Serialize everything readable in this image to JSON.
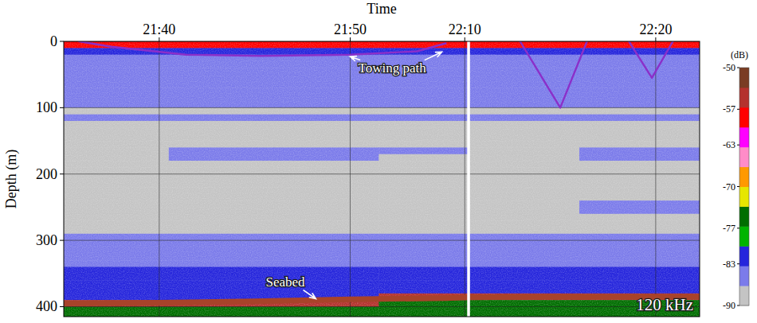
{
  "chart_data": {
    "type": "heatmap",
    "x_label": "Time",
    "y_label": "Depth (m)",
    "xlim": [
      0,
      33.3
    ],
    "xticks": [
      {
        "value": 5,
        "label": "21:40"
      },
      {
        "value": 15,
        "label": "21:50"
      },
      {
        "value": 21,
        "label": "22:10"
      },
      {
        "value": 31,
        "label": "22:20"
      }
    ],
    "ylim": [
      0,
      415
    ],
    "yticks": [
      0,
      100,
      200,
      300,
      400
    ],
    "grid": true,
    "breaks": [
      21.2
    ],
    "x_edges": [
      0,
      5.5,
      11,
      16.5,
      21.2,
      27,
      33.3
    ],
    "y_edges": [
      0,
      10,
      20,
      30,
      40,
      50,
      60,
      70,
      80,
      90,
      100,
      110,
      120,
      130,
      140,
      150,
      160,
      170,
      180,
      190,
      200,
      210,
      220,
      230,
      240,
      250,
      260,
      270,
      280,
      290,
      300,
      310,
      320,
      330,
      340,
      350,
      360,
      370,
      380,
      390,
      400,
      415
    ],
    "cells": [
      [
        -58,
        -58,
        -58,
        -58,
        -58,
        -58
      ],
      [
        -82,
        -82,
        -82,
        -82,
        -82,
        -82
      ],
      [
        -84,
        -84,
        -84,
        -84,
        -84,
        -84
      ],
      [
        -84,
        -84,
        -84,
        -84,
        -84,
        -84
      ],
      [
        -84,
        -84,
        -84,
        -84,
        -84,
        -84
      ],
      [
        -84,
        -84,
        -84,
        -84,
        -84,
        -84
      ],
      [
        -84,
        -84,
        -84,
        -84,
        -84,
        -84
      ],
      [
        -84,
        -84,
        -84,
        -84,
        -84,
        -84
      ],
      [
        -85,
        -85,
        -85,
        -85,
        -85,
        -85
      ],
      [
        -85,
        -85,
        -85,
        -85,
        -85,
        -85
      ],
      [
        -88,
        -88,
        -88,
        -88,
        -88,
        -88
      ],
      [
        -86,
        -86,
        -86,
        -86,
        -86,
        -86
      ],
      [
        -88,
        -88,
        -88,
        -88,
        -88,
        -88
      ],
      [
        -88,
        -88,
        -88,
        -88,
        -88,
        -88
      ],
      [
        -89,
        -89,
        -89,
        -89,
        -89,
        -89
      ],
      [
        -88,
        -87,
        -87,
        -87,
        -88,
        -88
      ],
      [
        -87,
        -86,
        -85,
        -86,
        -87,
        -86
      ],
      [
        -87,
        -86,
        -86,
        -87,
        -87,
        -86
      ],
      [
        -88,
        -88,
        -88,
        -88,
        -88,
        -88
      ],
      [
        -89,
        -89,
        -89,
        -89,
        -89,
        -89
      ],
      [
        -89,
        -89,
        -89,
        -89,
        -89,
        -89
      ],
      [
        -89,
        -89,
        -89,
        -89,
        -89,
        -89
      ],
      [
        -89,
        -89,
        -89,
        -89,
        -89,
        -89
      ],
      [
        -89,
        -89,
        -89,
        -89,
        -89,
        -89
      ],
      [
        -89,
        -89,
        -89,
        -89,
        -88,
        -86
      ],
      [
        -88,
        -88,
        -88,
        -88,
        -87,
        -86
      ],
      [
        -88,
        -88,
        -88,
        -88,
        -88,
        -88
      ],
      [
        -88,
        -88,
        -88,
        -88,
        -88,
        -88
      ],
      [
        -87,
        -87,
        -87,
        -87,
        -87,
        -87
      ],
      [
        -86,
        -86,
        -86,
        -86,
        -86,
        -86
      ],
      [
        -84,
        -84,
        -84,
        -84,
        -84,
        -84
      ],
      [
        -84,
        -84,
        -84,
        -84,
        -84,
        -84
      ],
      [
        -84,
        -84,
        -84,
        -84,
        -84,
        -84
      ],
      [
        -84,
        -84,
        -84,
        -84,
        -84,
        -84
      ],
      [
        -82,
        -82,
        -82,
        -82,
        -82,
        -82
      ],
      [
        -82,
        -82,
        -82,
        -82,
        -82,
        -82
      ],
      [
        -82,
        -82,
        -82,
        -82,
        -82,
        -82
      ],
      [
        -81,
        -81,
        -81,
        -81,
        -81,
        -81
      ],
      [
        -81,
        -81,
        -82,
        -55,
        -55,
        -55
      ],
      [
        -55,
        -55,
        -55,
        -75,
        -75,
        -75
      ],
      [
        -75,
        -75,
        -75,
        -75,
        -75,
        -75
      ]
    ],
    "colorbar": {
      "label": "(dB)",
      "range": [
        -90,
        -50
      ],
      "ticks": [
        -50,
        -57,
        -63,
        -70,
        -77,
        -83,
        -90
      ]
    },
    "series": [
      {
        "type": "line",
        "color": "#8b2fc9",
        "x": [
          0.8,
          2.5,
          6.4,
          10.3,
          15.0,
          18.5,
          20.0,
          null,
          23.9,
          26.0,
          27.4,
          null,
          29.6,
          30.8,
          31.9
        ],
        "values": [
          0,
          8,
          20,
          22,
          20,
          15,
          3,
          null,
          0,
          100,
          0,
          null,
          0,
          55,
          0
        ]
      },
      {
        "type": "line",
        "color": "#a8432a",
        "x": [
          0,
          5,
          10,
          15,
          20,
          21.2,
          25,
          30,
          33.3
        ],
        "values": [
          395,
          394,
          392,
          389,
          387,
          386,
          385,
          385,
          385
        ]
      }
    ],
    "annotations": [
      {
        "text": "Towing path",
        "x": 17.2,
        "y": 40,
        "arrows": [
          [
            15.0,
            23
          ],
          [
            19.8,
            16
          ]
        ]
      },
      {
        "text": "Seabed",
        "x": 11.6,
        "y": 362,
        "arrows": [
          [
            13.2,
            388
          ]
        ]
      },
      {
        "text": "120 kHz"
      }
    ]
  }
}
